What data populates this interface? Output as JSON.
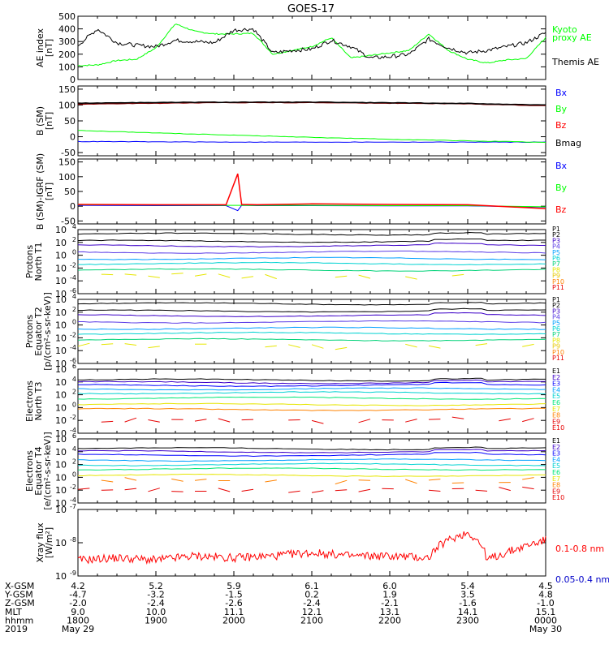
{
  "title": "GOES-17",
  "colors": {
    "black": "#000000",
    "green": "#00ff00",
    "red": "#ff0000",
    "blue": "#0000ff",
    "darkred": "#8b0000",
    "P": [
      "#000000",
      "#000000",
      "#3c00c8",
      "#5a3ce6",
      "#00a0ff",
      "#00d2d2",
      "#00d278",
      "#e6e600",
      "#e6c800",
      "#ff8200",
      "#e60000"
    ],
    "E": [
      "#000000",
      "#3c00c8",
      "#0000ff",
      "#00a0ff",
      "#00d2d2",
      "#00e678",
      "#e6e600",
      "#ff8200",
      "#e60000",
      "#e60000"
    ],
    "xray_long": "#ff0000",
    "xray_short": "#0000c8"
  },
  "panels": {
    "ae": {
      "ylabel": "AE index",
      "yunit": "[nT]",
      "yticks": [
        "500",
        "400",
        "300",
        "200",
        "100",
        "0"
      ],
      "legend": [
        {
          "text": "Kyoto",
          "color": "#00ff00"
        },
        {
          "text": "proxy AE",
          "color": "#00ff00"
        },
        {
          "text": "Themis AE",
          "color": "#000000"
        }
      ]
    },
    "bsm": {
      "ylabel": "B (SM)",
      "yunit": "[nT]",
      "yticks": [
        "150",
        "100",
        "50",
        "0",
        "-50"
      ],
      "legend": [
        {
          "text": "Bx",
          "color": "#0000ff"
        },
        {
          "text": "By",
          "color": "#00ff00"
        },
        {
          "text": "Bz",
          "color": "#ff0000"
        },
        {
          "text": "Bmag",
          "color": "#000000"
        }
      ]
    },
    "bigrf": {
      "ylabel": "B (SM)-IGRF (SM)",
      "yunit": "[nT]",
      "yticks": [
        "150",
        "100",
        "50",
        "0",
        "-50"
      ],
      "legend": [
        {
          "text": "Bx",
          "color": "#0000ff"
        },
        {
          "text": "By",
          "color": "#00ff00"
        },
        {
          "text": "Bz",
          "color": "#ff0000"
        }
      ]
    },
    "pt1": {
      "ylabel1": "Protons",
      "ylabel2": "North T1",
      "yexp": [
        "4",
        "2",
        "0",
        "-2",
        "-4",
        "-6"
      ],
      "legend": [
        "P1",
        "P2",
        "P3",
        "P4",
        "P5",
        "P6",
        "P7",
        "P8",
        "P9",
        "P10",
        "P11"
      ]
    },
    "pt2": {
      "ylabel1": "Protons",
      "ylabel2": "Equator T2",
      "ylabel3": "[p/(cm²-s-sr-keV)]",
      "yexp": [
        "4",
        "2",
        "0",
        "-2",
        "-4",
        "-6"
      ],
      "legend": [
        "P1",
        "P2",
        "P3",
        "P4",
        "P5",
        "P6",
        "P7",
        "P8",
        "P9",
        "P10",
        "P11"
      ]
    },
    "et3": {
      "ylabel1": "Electrons",
      "ylabel2": "North T3",
      "yexp": [
        "6",
        "4",
        "2",
        "0",
        "-2",
        "-4"
      ],
      "legend": [
        "E1",
        "E2",
        "E3",
        "E4",
        "E5",
        "E6",
        "E7",
        "E8",
        "E9",
        "E10"
      ]
    },
    "et4": {
      "ylabel1": "Electrons",
      "ylabel2": "Equator T4",
      "ylabel3": "[e/(cm²-s-sr-keV)]",
      "yexp": [
        "6",
        "4",
        "2",
        "0",
        "-2",
        "-4"
      ],
      "legend": [
        "E1",
        "E2",
        "E3",
        "E4",
        "E5",
        "E6",
        "E7",
        "E8",
        "E9",
        "E10"
      ]
    },
    "xray": {
      "ylabel": "Xray flux",
      "yunit": "[W/m²]",
      "yexp": [
        "-7",
        "-8",
        "-9"
      ],
      "legend": [
        {
          "text": "0.1-0.8 nm",
          "color": "#ff0000"
        },
        {
          "text": "0.05-0.4 nm",
          "color": "#0000c8"
        }
      ]
    }
  },
  "xaxis": {
    "row_labels": [
      "X-GSM",
      "Y-GSM",
      "Z-GSM",
      "MLT",
      "hhmm",
      "2019"
    ],
    "ticks": [
      {
        "x": "4.2",
        "y": "-4.7",
        "z": "-2.0",
        "mlt": "9.0",
        "hhmm": "1800",
        "date": "May 29"
      },
      {
        "x": "5.2",
        "y": "-3.2",
        "z": "-2.4",
        "mlt": "10.0",
        "hhmm": "1900",
        "date": ""
      },
      {
        "x": "5.9",
        "y": "-1.5",
        "z": "-2.6",
        "mlt": "11.1",
        "hhmm": "2000",
        "date": ""
      },
      {
        "x": "6.1",
        "y": "0.2",
        "z": "-2.4",
        "mlt": "12.1",
        "hhmm": "2100",
        "date": ""
      },
      {
        "x": "6.0",
        "y": "1.9",
        "z": "-2.1",
        "mlt": "13.1",
        "hhmm": "2200",
        "date": ""
      },
      {
        "x": "5.4",
        "y": "3.5",
        "z": "-1.6",
        "mlt": "14.1",
        "hhmm": "2300",
        "date": ""
      },
      {
        "x": "4.5",
        "y": "4.8",
        "z": "-1.0",
        "mlt": "15.1",
        "hhmm": "0000",
        "date": "May 30"
      }
    ]
  },
  "chart_data": [
    {
      "type": "line",
      "panel": "AE index",
      "ylim": [
        0,
        500
      ],
      "x_hours": [
        18,
        18.25,
        18.5,
        18.75,
        19,
        19.25,
        19.5,
        19.75,
        20,
        20.25,
        20.5,
        20.75,
        21,
        21.25,
        21.5,
        21.75,
        22,
        22.25,
        22.5,
        22.75,
        23,
        23.25,
        23.5,
        23.75,
        24
      ],
      "series": [
        {
          "name": "Kyoto proxy AE",
          "values": [
            110,
            115,
            150,
            160,
            250,
            440,
            380,
            360,
            360,
            365,
            200,
            230,
            260,
            330,
            170,
            190,
            210,
            230,
            360,
            230,
            160,
            130,
            155,
            165,
            330
          ]
        },
        {
          "name": "Themis AE",
          "values": [
            270,
            400,
            290,
            270,
            260,
            310,
            300,
            290,
            390,
            400,
            210,
            230,
            240,
            310,
            260,
            170,
            180,
            200,
            320,
            250,
            210,
            230,
            260,
            290,
            370
          ]
        }
      ]
    },
    {
      "type": "line",
      "panel": "B (SM)",
      "ylim": [
        -60,
        160
      ],
      "x_hours": [
        18,
        19,
        20,
        21,
        22,
        23,
        24
      ],
      "series": [
        {
          "name": "Bx",
          "values": [
            -15,
            -16,
            -17,
            -17,
            -17,
            -17,
            -17
          ]
        },
        {
          "name": "By",
          "values": [
            20,
            12,
            5,
            -2,
            -8,
            -13,
            -18
          ]
        },
        {
          "name": "Bz",
          "values": [
            103,
            106,
            108,
            108,
            106,
            104,
            98
          ]
        },
        {
          "name": "Bmag",
          "values": [
            106,
            108,
            109,
            109,
            107,
            105,
            100
          ]
        }
      ]
    },
    {
      "type": "line",
      "panel": "B (SM)-IGRF (SM)",
      "ylim": [
        -60,
        160
      ],
      "x_hours": [
        18,
        19,
        19.9,
        20.05,
        20.1,
        20.3,
        21,
        22,
        23,
        24
      ],
      "series": [
        {
          "name": "Bx",
          "values": [
            3,
            2,
            2,
            -15,
            3,
            2,
            2,
            1,
            1,
            -3
          ]
        },
        {
          "name": "By",
          "values": [
            5,
            4,
            3,
            3,
            3,
            3,
            3,
            2,
            2,
            -2
          ]
        },
        {
          "name": "Bz",
          "values": [
            6,
            5,
            5,
            110,
            6,
            5,
            8,
            6,
            5,
            -8
          ]
        }
      ]
    },
    {
      "type": "line",
      "panel": "Protons North T1",
      "yscale": "log",
      "ylim": [
        1e-06,
        10000.0
      ],
      "channels": [
        "P1",
        "P2",
        "P3",
        "P4",
        "P5",
        "P6",
        "P7",
        "P8",
        "P9",
        "P10",
        "P11"
      ],
      "levels": [
        2000,
        150,
        30,
        3,
        0.3,
        0.05,
        0.005,
        0.0005,
        null,
        null,
        null
      ]
    },
    {
      "type": "line",
      "panel": "Protons Equator T2",
      "yscale": "log",
      "ylim": [
        1e-06,
        10000.0
      ],
      "channels": [
        "P1",
        "P2",
        "P3",
        "P4",
        "P5",
        "P6",
        "P7",
        "P8",
        "P9",
        "P10",
        "P11"
      ],
      "levels": [
        2000,
        150,
        30,
        3,
        0.3,
        0.05,
        0.005,
        0.0005,
        null,
        null,
        null
      ]
    },
    {
      "type": "line",
      "panel": "Electrons North T3",
      "yscale": "log",
      "ylim": [
        0.0001,
        1000000.0
      ],
      "channels": [
        "E1",
        "E2",
        "E3",
        "E4",
        "E5",
        "E6",
        "E7",
        "E8",
        "E9",
        "E10"
      ],
      "levels": [
        20000,
        8000,
        3000,
        800,
        200,
        30,
        3,
        0.5,
        0.01,
        null
      ]
    },
    {
      "type": "line",
      "panel": "Electrons Equator T4",
      "yscale": "log",
      "ylim": [
        0.0001,
        1000000.0
      ],
      "channels": [
        "E1",
        "E2",
        "E3",
        "E4",
        "E5",
        "E6",
        "E7",
        "E8",
        "E9",
        "E10"
      ],
      "levels": [
        30000,
        10000,
        3000,
        500,
        100,
        20,
        2,
        0.3,
        0.01,
        null
      ]
    },
    {
      "type": "line",
      "panel": "Xray flux",
      "yscale": "log",
      "ylim": [
        1e-09,
        1e-07
      ],
      "x_hours": [
        18,
        18.5,
        19,
        19.5,
        20,
        20.5,
        21,
        21.5,
        22,
        22.5,
        23,
        23.25,
        23.5,
        23.75,
        24
      ],
      "series": [
        {
          "name": "0.1-0.8 nm",
          "values": [
            3e-09,
            3.5e-09,
            3e-09,
            4e-09,
            3.5e-09,
            4e-09,
            5e-09,
            4e-09,
            4e-09,
            3.5e-09,
            2e-08,
            3e-09,
            5e-09,
            8e-09,
            1.2e-08
          ]
        }
      ]
    }
  ]
}
